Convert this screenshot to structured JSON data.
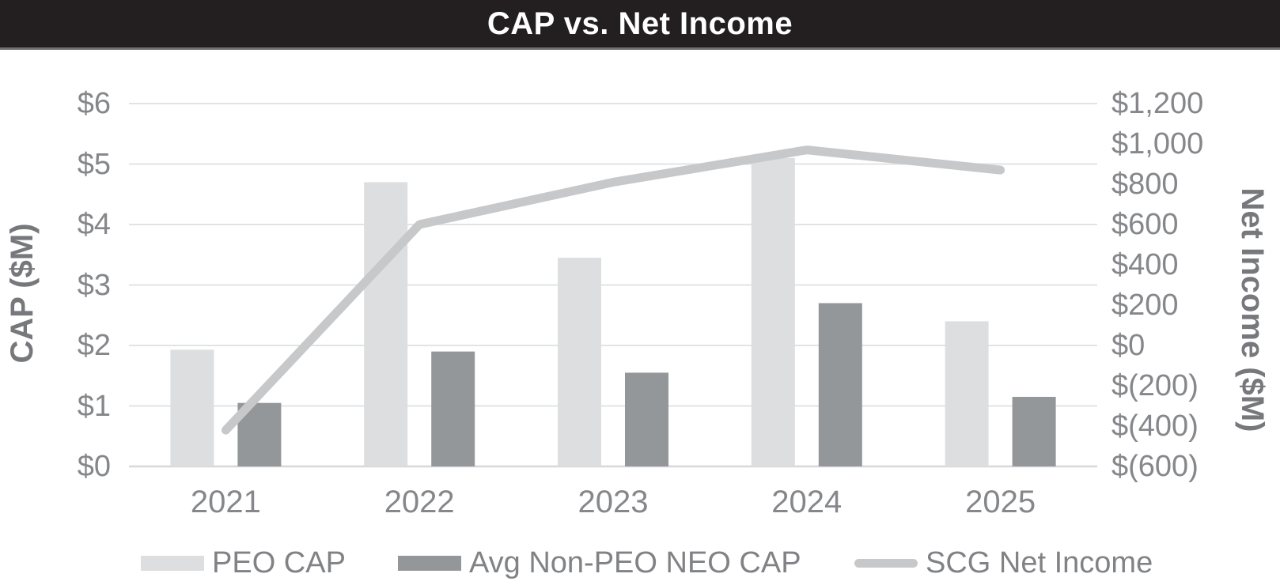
{
  "chart_data": {
    "type": "combo-bar-line",
    "title": "CAP vs. Net Income",
    "categories": [
      "2021",
      "2022",
      "2023",
      "2024",
      "2025"
    ],
    "series": [
      {
        "name": "PEO CAP",
        "kind": "bar",
        "axis": "left",
        "color": "#dcdee0",
        "values": [
          1.93,
          4.7,
          3.45,
          5.1,
          2.4
        ]
      },
      {
        "name": "Avg Non-PEO NEO CAP",
        "kind": "bar",
        "axis": "left",
        "color": "#94979a",
        "values": [
          1.05,
          1.9,
          1.55,
          2.7,
          1.15
        ]
      },
      {
        "name": "SCG Net Income",
        "kind": "line",
        "axis": "right",
        "color": "#c7c8ca",
        "values": [
          -420,
          600,
          810,
          970,
          870
        ]
      }
    ],
    "left_axis": {
      "label": "CAP ($M)",
      "min": 0,
      "max": 6,
      "step": 1,
      "tick_labels": [
        "$0",
        "$1",
        "$2",
        "$3",
        "$4",
        "$5",
        "$6"
      ]
    },
    "right_axis": {
      "label": "Net Income ($M)",
      "min": -600,
      "max": 1200,
      "step": 200,
      "tick_labels": [
        "$(600)",
        "$(400)",
        "$(200)",
        "$0",
        "$200",
        "$400",
        "$600",
        "$800",
        "$1,000",
        "$1,200"
      ]
    },
    "grid": true,
    "legend_position": "bottom",
    "colors": {
      "header_bg": "#231f20",
      "header_border": "#6e7071",
      "title_text": "#ffffff",
      "tick_text": "#85878a",
      "axis_title_text": "#77787b",
      "legend_text": "#808285",
      "gridline": "#e2e3e5",
      "baseline": "#d7d8da"
    }
  }
}
